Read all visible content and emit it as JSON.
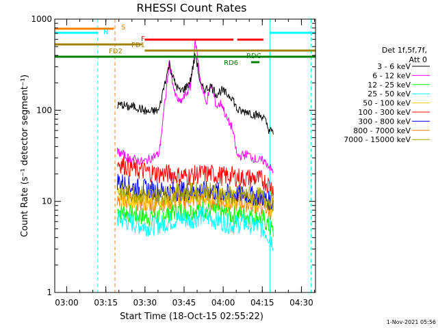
{
  "chart_data": {
    "type": "line",
    "title": "RHESSI Count Rates",
    "xlabel": "Start Time (18-Oct-15 02:55:22)",
    "ylabel": "Count Rate (s⁻¹ detector segment⁻¹)",
    "yscale": "log",
    "ylim": [
      1,
      1000
    ],
    "y_ticks": [
      "1",
      "10",
      "100",
      "1000"
    ],
    "x_axis_unit": "minutes after start time",
    "xlim": [
      0,
      100
    ],
    "x_ticks": [
      {
        "t": 4.6,
        "label": "03:00"
      },
      {
        "t": 19.6,
        "label": "03:15"
      },
      {
        "t": 34.6,
        "label": "03:30"
      },
      {
        "t": 49.6,
        "label": "03:45"
      },
      {
        "t": 64.6,
        "label": "04:00"
      },
      {
        "t": 79.6,
        "label": "04:15"
      },
      {
        "t": 94.6,
        "label": "04:30"
      }
    ],
    "legend_placement": "right",
    "legend_header": [
      "Det 1f,5f,7f,",
      "Att 0"
    ],
    "series": [
      {
        "name": "3 - 6 keV",
        "color": "#000000",
        "x": [
          24,
          26,
          28,
          30,
          32,
          34,
          36,
          38,
          40,
          42,
          44,
          46,
          48,
          50,
          52,
          54,
          56,
          58,
          60,
          62,
          64,
          66,
          68,
          70,
          72,
          74,
          76,
          78,
          80,
          82,
          84
        ],
        "y": [
          112,
          115,
          108,
          110,
          107,
          100,
          95,
          98,
          100,
          190,
          320,
          200,
          160,
          175,
          210,
          420,
          180,
          170,
          185,
          150,
          165,
          150,
          140,
          100,
          96,
          98,
          90,
          88,
          85,
          62,
          55
        ]
      },
      {
        "name": "6 - 12 keV",
        "color": "#ff00ff",
        "x": [
          24,
          26,
          28,
          30,
          32,
          34,
          36,
          38,
          40,
          42,
          44,
          46,
          48,
          50,
          52,
          54,
          56,
          58,
          60,
          62,
          64,
          66,
          68,
          70,
          72,
          74,
          76,
          78,
          80,
          82,
          84
        ],
        "y": [
          35,
          33,
          30,
          29,
          28,
          27,
          29,
          31,
          33,
          105,
          340,
          150,
          120,
          145,
          180,
          580,
          200,
          120,
          190,
          110,
          120,
          80,
          65,
          31,
          32,
          33,
          30,
          28,
          28,
          25,
          20
        ]
      },
      {
        "name": "12 - 25 keV",
        "color": "#00ff00",
        "x": [
          24,
          28,
          32,
          36,
          40,
          44,
          48,
          52,
          56,
          60,
          64,
          68,
          72,
          76,
          80,
          84
        ],
        "y": [
          8.0,
          7.5,
          7.0,
          6.8,
          7.0,
          7.5,
          8.0,
          7.8,
          8.5,
          8.0,
          7.5,
          7.0,
          7.2,
          7.0,
          6.5,
          4.5
        ]
      },
      {
        "name": "25 - 50 keV",
        "color": "#00ffff",
        "x": [
          24,
          28,
          32,
          36,
          40,
          44,
          48,
          52,
          56,
          60,
          64,
          68,
          72,
          76,
          80,
          84
        ],
        "y": [
          6.5,
          6.0,
          5.5,
          5.3,
          5.5,
          6.0,
          6.5,
          6.2,
          7.0,
          6.5,
          6.0,
          5.5,
          5.8,
          5.5,
          5.0,
          3.5
        ]
      },
      {
        "name": "50 - 100 keV",
        "color": "#ffcc00",
        "x": [
          24,
          28,
          32,
          36,
          40,
          44,
          48,
          52,
          56,
          60,
          64,
          68,
          72,
          76,
          80,
          84
        ],
        "y": [
          11.5,
          11.0,
          10.5,
          10.2,
          10.5,
          11.0,
          11.5,
          11.3,
          12.0,
          11.5,
          11.0,
          10.5,
          10.8,
          10.5,
          10.0,
          9.0
        ]
      },
      {
        "name": "100 - 300 keV",
        "color": "#ff0000",
        "x": [
          24,
          28,
          32,
          36,
          40,
          44,
          48,
          52,
          56,
          60,
          64,
          68,
          72,
          76,
          80,
          84
        ],
        "y": [
          27,
          24,
          22,
          21,
          20,
          20,
          19,
          19,
          20,
          20,
          19,
          19,
          18,
          18,
          17,
          14
        ]
      },
      {
        "name": "300 - 800 keV",
        "color": "#0000ff",
        "x": [
          24,
          28,
          32,
          36,
          40,
          44,
          48,
          52,
          56,
          60,
          64,
          68,
          72,
          76,
          80,
          84
        ],
        "y": [
          17,
          15,
          14,
          13.5,
          13,
          13,
          13,
          13,
          13,
          13,
          12.5,
          12,
          12,
          11.5,
          11,
          9.5
        ]
      },
      {
        "name": "800 - 7000 keV",
        "color": "#ff8000",
        "x": [
          24,
          28,
          32,
          36,
          40,
          44,
          48,
          52,
          56,
          60,
          64,
          68,
          72,
          76,
          80,
          84
        ],
        "y": [
          11,
          10.5,
          10,
          9.5,
          9.8,
          10,
          10.5,
          10.5,
          11,
          10.5,
          10,
          9.5,
          9.8,
          9.5,
          9,
          7.5
        ]
      },
      {
        "name": "7000 - 15000 keV",
        "color": "#a0a000",
        "x": [
          24,
          28,
          32,
          36,
          40,
          44,
          48,
          52,
          56,
          60,
          64,
          68,
          72,
          76,
          80,
          84
        ],
        "y": [
          13,
          12.5,
          12,
          11.5,
          11.5,
          12,
          12.5,
          12.5,
          13,
          12.5,
          12,
          11.5,
          11.8,
          11.5,
          11,
          10
        ]
      }
    ],
    "flag_bars": [
      {
        "label": "S",
        "color": "#ff8000",
        "segments": [
          [
            0,
            22.7
          ]
        ]
      },
      {
        "label": "N",
        "color": "#00ffff",
        "segments": [
          [
            0,
            16.5
          ],
          [
            82.5,
            100
          ]
        ]
      },
      {
        "label": "F",
        "color": "#ff0000",
        "segments": [
          [
            34.5,
            68.5
          ],
          [
            70,
            80
          ]
        ]
      },
      {
        "label": "FD1",
        "color": "#a08000",
        "segments": [
          [
            0,
            33.5
          ]
        ]
      },
      {
        "label": "FD2",
        "color": "#a08000",
        "segments": [
          [
            34.5,
            100
          ]
        ]
      },
      {
        "label": "RD6",
        "color": "#008000",
        "segments": [
          [
            75.3,
            78.5
          ]
        ]
      },
      {
        "label": "RDC",
        "color": "#008000",
        "segments": [
          [
            0,
            100
          ]
        ]
      }
    ],
    "vertical_markers": [
      {
        "t": 16.5,
        "color": "#00ffff",
        "style": "dashed"
      },
      {
        "t": 23.1,
        "color": "#ff8000",
        "style": "dashed"
      },
      {
        "t": 82.5,
        "color": "#00ffff",
        "style": "solid"
      },
      {
        "t": 98.3,
        "color": "#00ffff",
        "style": "dashed"
      }
    ],
    "footer": "1-Nov-2021 05:56"
  }
}
